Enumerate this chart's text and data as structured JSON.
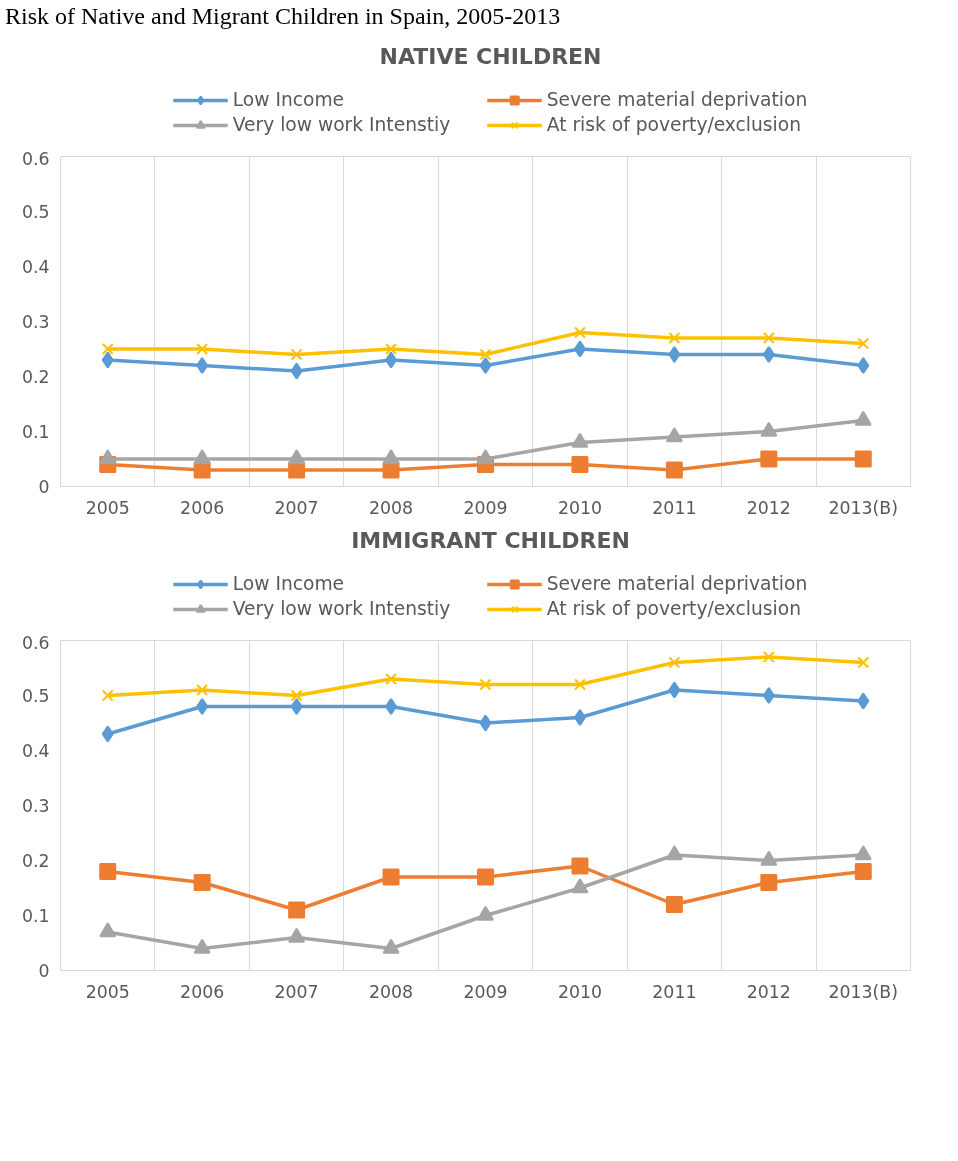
{
  "chart_data": [
    {
      "type": "line",
      "title": "NATIVE CHILDREN",
      "annotations": [
        "Risk of Native and Migrant Children in Spain, 2005-2013"
      ],
      "categories": [
        "2005",
        "2006",
        "2007",
        "2008",
        "2009",
        "2010",
        "2011",
        "2012",
        "2013(B)"
      ],
      "ylim": [
        0,
        0.6
      ],
      "yticks": [
        0,
        0.1,
        0.2,
        0.3,
        0.4,
        0.5,
        0.6
      ],
      "grid": "x",
      "legend": "top",
      "series": [
        {
          "name": "Low Income",
          "color": "#5b9bd5",
          "marker": "diamond",
          "values": [
            0.23,
            0.22,
            0.21,
            0.23,
            0.22,
            0.25,
            0.24,
            0.24,
            0.22
          ]
        },
        {
          "name": "Severe material deprivation",
          "color": "#ed7d31",
          "marker": "square",
          "values": [
            0.04,
            0.03,
            0.03,
            0.03,
            0.04,
            0.04,
            0.03,
            0.05,
            0.05
          ]
        },
        {
          "name": "Very low work Intenstiy",
          "color": "#a5a5a5",
          "marker": "triangle",
          "values": [
            0.05,
            0.05,
            0.05,
            0.05,
            0.05,
            0.08,
            0.09,
            0.1,
            0.12
          ]
        },
        {
          "name": "At risk of poverty/exclusion",
          "color": "#ffc000",
          "marker": "cross",
          "values": [
            0.25,
            0.25,
            0.24,
            0.25,
            0.24,
            0.28,
            0.27,
            0.27,
            0.26
          ]
        }
      ]
    },
    {
      "type": "line",
      "title": "IMMIGRANT CHILDREN",
      "categories": [
        "2005",
        "2006",
        "2007",
        "2008",
        "2009",
        "2010",
        "2011",
        "2012",
        "2013(B)"
      ],
      "ylim": [
        0,
        0.6
      ],
      "yticks": [
        0,
        0.1,
        0.2,
        0.3,
        0.4,
        0.5,
        0.6
      ],
      "grid": "x",
      "legend": "top",
      "series": [
        {
          "name": "Low Income",
          "color": "#5b9bd5",
          "marker": "diamond",
          "values": [
            0.43,
            0.48,
            0.48,
            0.48,
            0.45,
            0.46,
            0.51,
            0.5,
            0.49
          ]
        },
        {
          "name": "Severe material deprivation",
          "color": "#ed7d31",
          "marker": "square",
          "values": [
            0.18,
            0.16,
            0.11,
            0.17,
            0.17,
            0.19,
            0.12,
            0.16,
            0.18
          ]
        },
        {
          "name": "Very low work Intenstiy",
          "color": "#a5a5a5",
          "marker": "triangle",
          "values": [
            0.07,
            0.04,
            0.06,
            0.04,
            0.1,
            0.15,
            0.21,
            0.2,
            0.21
          ]
        },
        {
          "name": "At risk of poverty/exclusion",
          "color": "#ffc000",
          "marker": "cross",
          "values": [
            0.5,
            0.51,
            0.5,
            0.53,
            0.52,
            0.52,
            0.56,
            0.57,
            0.56
          ]
        }
      ]
    }
  ]
}
